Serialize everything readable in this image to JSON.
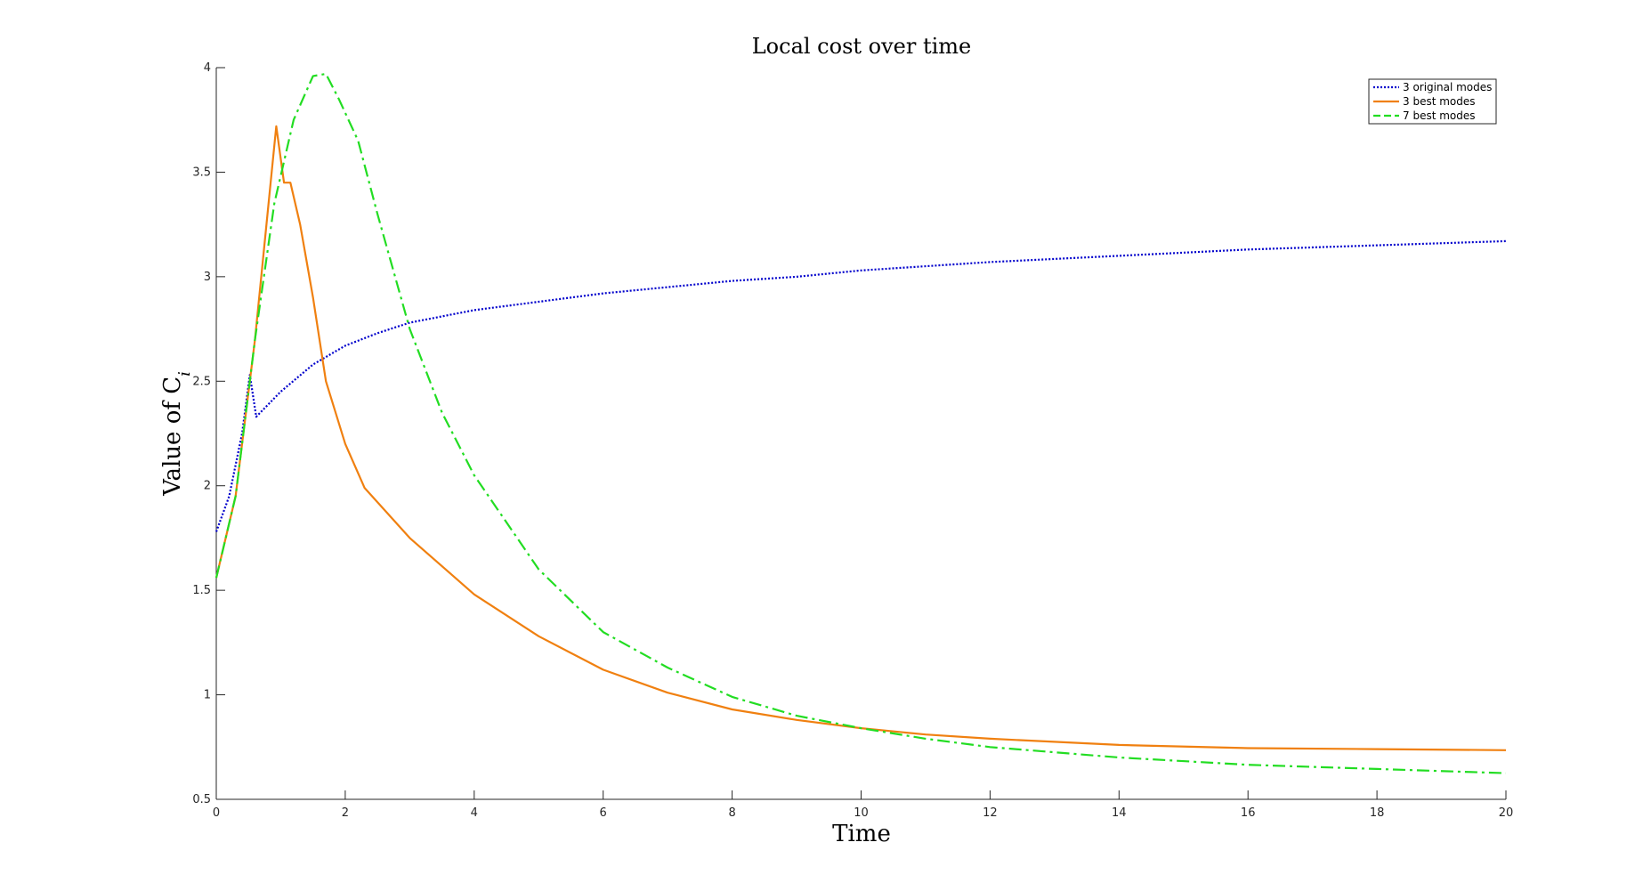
{
  "chart_data": {
    "type": "line",
    "title": "Local cost over time",
    "xlabel": "Time",
    "ylabel": "Value of C",
    "ylabel_sub": "i",
    "xlim": [
      0,
      20
    ],
    "ylim": [
      0.5,
      4
    ],
    "xticks": [
      0,
      2,
      4,
      6,
      8,
      10,
      12,
      14,
      16,
      18,
      20
    ],
    "yticks": [
      0.5,
      1,
      1.5,
      2,
      2.5,
      3,
      3.5,
      4
    ],
    "xtick_labels": [
      "0",
      "2",
      "4",
      "6",
      "8",
      "10",
      "12",
      "14",
      "16",
      "18",
      "20"
    ],
    "ytick_labels": [
      "0.5",
      "1",
      "1.5",
      "2",
      "2.5",
      "3",
      "3.5",
      "4"
    ],
    "grid": false,
    "legend_position": "top-right",
    "series": [
      {
        "name": "3 original modes",
        "color": "#0000cc",
        "style": "dotted",
        "points": [
          [
            0,
            1.78
          ],
          [
            0.2,
            1.95
          ],
          [
            0.4,
            2.25
          ],
          [
            0.52,
            2.53
          ],
          [
            0.62,
            2.33
          ],
          [
            1.0,
            2.45
          ],
          [
            1.5,
            2.58
          ],
          [
            2.0,
            2.67
          ],
          [
            2.5,
            2.73
          ],
          [
            3.0,
            2.78
          ],
          [
            4.0,
            2.84
          ],
          [
            5.0,
            2.88
          ],
          [
            6.0,
            2.92
          ],
          [
            7.0,
            2.95
          ],
          [
            8.0,
            2.98
          ],
          [
            9.0,
            3.0
          ],
          [
            10.0,
            3.03
          ],
          [
            12.0,
            3.07
          ],
          [
            14.0,
            3.1
          ],
          [
            16.0,
            3.13
          ],
          [
            18.0,
            3.15
          ],
          [
            20.0,
            3.17
          ]
        ]
      },
      {
        "name": "3 best modes",
        "color": "#f08010",
        "style": "solid",
        "points": [
          [
            0,
            1.56
          ],
          [
            0.3,
            1.95
          ],
          [
            0.6,
            2.7
          ],
          [
            0.93,
            3.72
          ],
          [
            1.05,
            3.45
          ],
          [
            1.15,
            3.45
          ],
          [
            1.3,
            3.25
          ],
          [
            1.5,
            2.9
          ],
          [
            1.7,
            2.5
          ],
          [
            2.0,
            2.2
          ],
          [
            2.3,
            1.99
          ],
          [
            3.0,
            1.75
          ],
          [
            4.0,
            1.48
          ],
          [
            5.0,
            1.28
          ],
          [
            6.0,
            1.12
          ],
          [
            7.0,
            1.01
          ],
          [
            8.0,
            0.93
          ],
          [
            9.0,
            0.88
          ],
          [
            10.0,
            0.84
          ],
          [
            11.0,
            0.81
          ],
          [
            12.0,
            0.79
          ],
          [
            14.0,
            0.76
          ],
          [
            16.0,
            0.745
          ],
          [
            18.0,
            0.74
          ],
          [
            20.0,
            0.735
          ]
        ]
      },
      {
        "name": "7 best modes",
        "color": "#22dd22",
        "style": "dashdot",
        "points": [
          [
            0,
            1.56
          ],
          [
            0.3,
            1.95
          ],
          [
            0.6,
            2.7
          ],
          [
            0.9,
            3.35
          ],
          [
            1.2,
            3.75
          ],
          [
            1.5,
            3.96
          ],
          [
            1.7,
            3.97
          ],
          [
            1.9,
            3.85
          ],
          [
            2.2,
            3.65
          ],
          [
            2.5,
            3.3
          ],
          [
            3.0,
            2.75
          ],
          [
            3.5,
            2.35
          ],
          [
            4.0,
            2.05
          ],
          [
            5.0,
            1.6
          ],
          [
            6.0,
            1.3
          ],
          [
            7.0,
            1.13
          ],
          [
            8.0,
            0.99
          ],
          [
            9.0,
            0.9
          ],
          [
            10.0,
            0.84
          ],
          [
            11.0,
            0.79
          ],
          [
            12.0,
            0.75
          ],
          [
            14.0,
            0.7
          ],
          [
            16.0,
            0.665
          ],
          [
            18.0,
            0.645
          ],
          [
            20.0,
            0.625
          ]
        ]
      }
    ]
  }
}
